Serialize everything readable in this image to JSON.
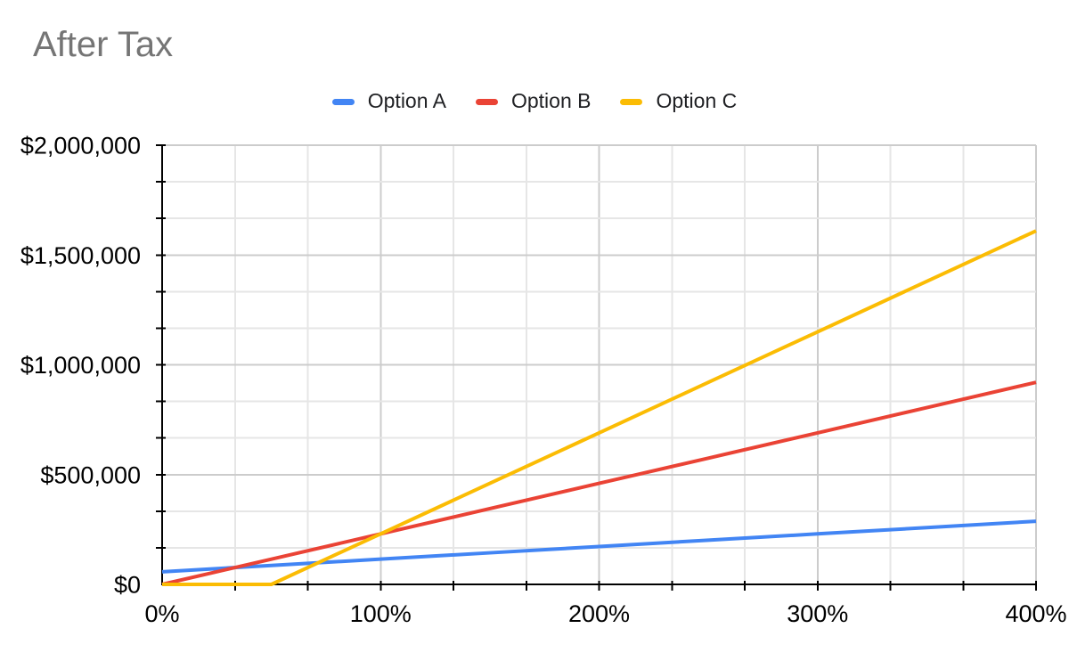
{
  "title": "After Tax",
  "legend": {
    "items": [
      {
        "label": "Option A",
        "color": "#4285F4"
      },
      {
        "label": "Option B",
        "color": "#EA4335"
      },
      {
        "label": "Option C",
        "color": "#FBBC04"
      }
    ]
  },
  "chart_data": {
    "type": "line",
    "title": "After Tax",
    "xlabel": "",
    "ylabel": "",
    "x": [
      0,
      50,
      100,
      150,
      200,
      250,
      300,
      350,
      400
    ],
    "series": [
      {
        "name": "Option A",
        "color": "#4285F4",
        "values": [
          57500,
          86250,
          115000,
          143750,
          172500,
          201250,
          230000,
          258750,
          287500
        ]
      },
      {
        "name": "Option B",
        "color": "#EA4335",
        "values": [
          0,
          115000,
          230000,
          345000,
          460000,
          575000,
          690000,
          805000,
          920000
        ]
      },
      {
        "name": "Option C",
        "color": "#FBBC04",
        "values": [
          0,
          0,
          230000,
          460000,
          690000,
          920000,
          1150000,
          1380000,
          1610000
        ]
      }
    ],
    "xlim": [
      0,
      400
    ],
    "ylim": [
      0,
      2000000
    ],
    "x_tick_labels": [
      "0%",
      "100%",
      "200%",
      "300%",
      "400%"
    ],
    "y_tick_labels": [
      "$0",
      "$500,000",
      "$1,000,000",
      "$1,500,000",
      "$2,000,000"
    ],
    "minor_divisions_x": 12,
    "minor_divisions_y": 12,
    "major_every": 3,
    "grid": true,
    "legend_position": "top"
  },
  "colors": {
    "background": "#ffffff",
    "title_text": "#757575",
    "axis_text": "#000000",
    "legend_text": "#202124",
    "axis_line": "#000000",
    "gridline_major": "#cccccc",
    "gridline_minor": "#e6e6e6"
  }
}
